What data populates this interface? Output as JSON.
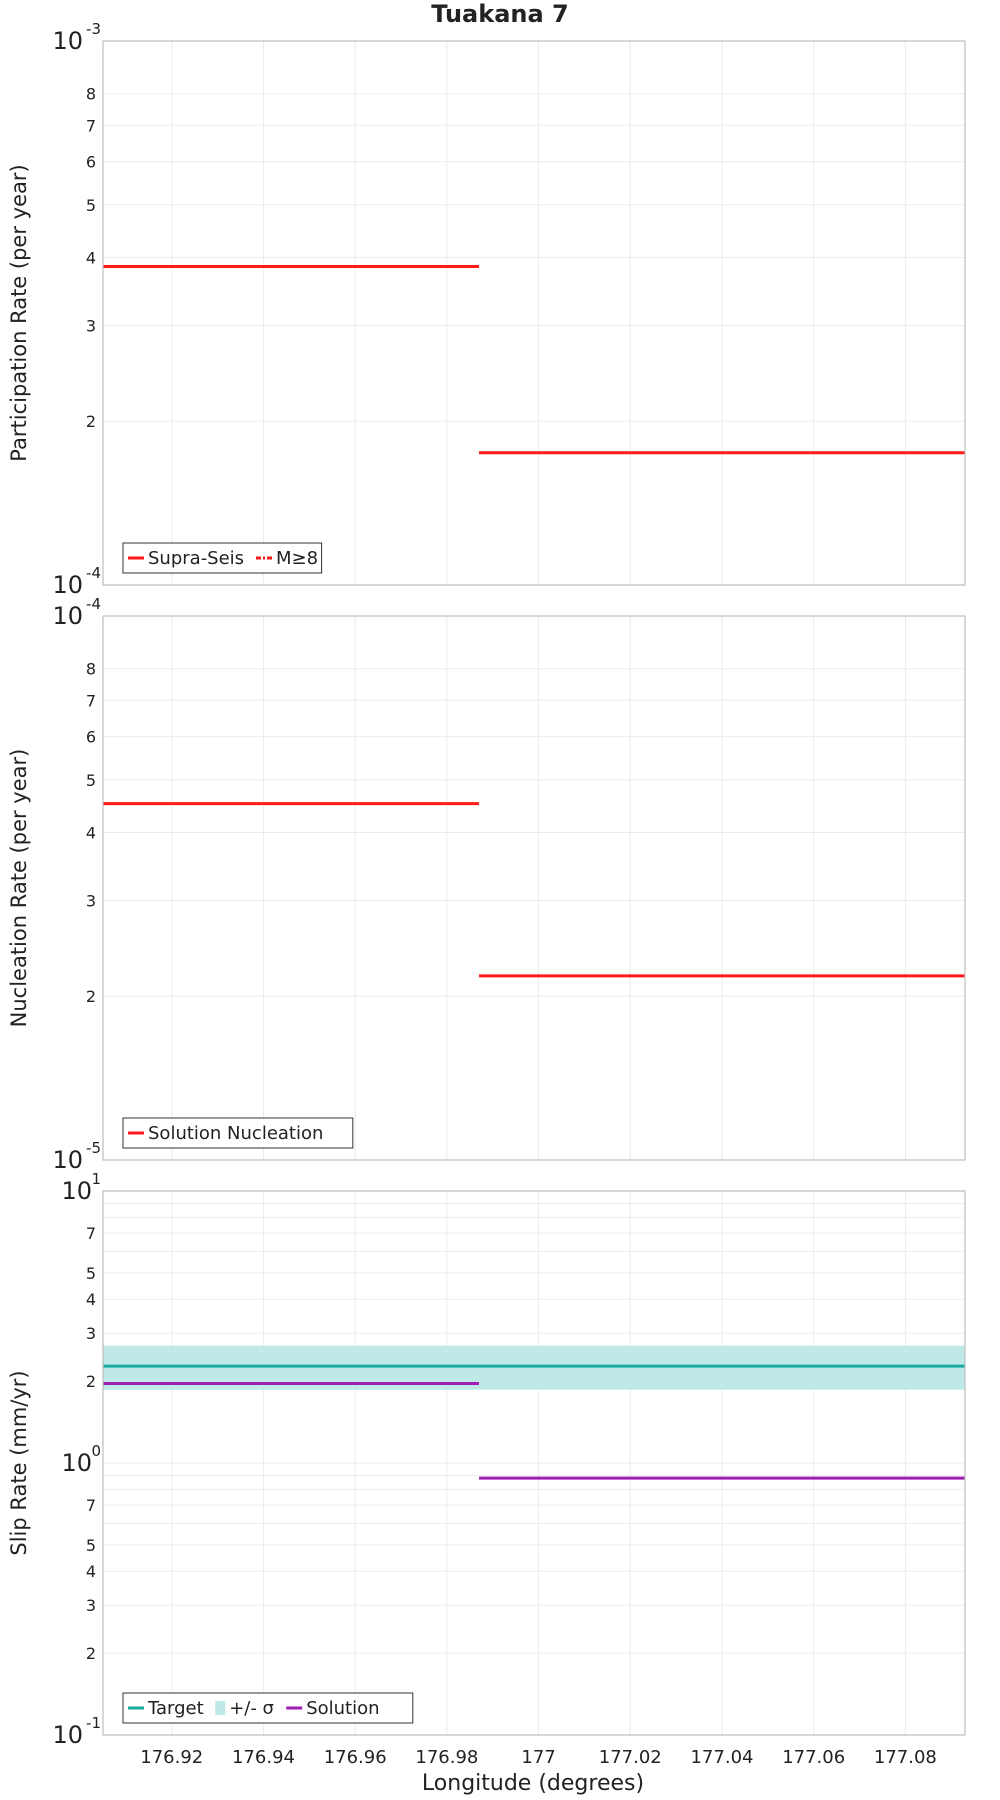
{
  "title": "Tuakana 7",
  "colors": {
    "red": "#ff1a1a",
    "target": "#1aaaa0",
    "band": "#bfe9e6",
    "solution": "#a01eb4",
    "grid": "#ebebeb",
    "frame": "#bdbdbd"
  },
  "chart_data": [
    {
      "type": "line",
      "panel": "participation",
      "ylabel": "Participation Rate (per year)",
      "yscale": "log",
      "ylim": [
        0.0001,
        0.001
      ],
      "xlim": [
        176.905,
        177.093
      ],
      "decade_labels": [
        {
          "value": 0.001,
          "base": "10",
          "exp": "-3"
        },
        {
          "value": 0.0001,
          "base": "10",
          "exp": "-4"
        }
      ],
      "minor_ticks": [
        {
          "value": 0.0008,
          "label": "8"
        },
        {
          "value": 0.0007,
          "label": "7"
        },
        {
          "value": 0.0006,
          "label": "6"
        },
        {
          "value": 0.0005,
          "label": "5"
        },
        {
          "value": 0.0004,
          "label": "4"
        },
        {
          "value": 0.0003,
          "label": "3"
        },
        {
          "value": 0.0002,
          "label": "2"
        }
      ],
      "series": [
        {
          "name": "Supra-Seis",
          "color": "#ff1a1a",
          "style": "solid",
          "segments": [
            {
              "x": [
                176.905,
                176.987
              ],
              "y": 0.000385
            },
            {
              "x": [
                176.987,
                177.093
              ],
              "y": 0.000175
            }
          ]
        },
        {
          "name": "M≥8",
          "color": "#ff1a1a",
          "style": "dashdot",
          "segments": []
        }
      ],
      "legend": [
        {
          "label": "Supra-Seis",
          "kind": "line",
          "color": "#ff1a1a",
          "style": "solid"
        },
        {
          "label": "M≥8",
          "kind": "line",
          "color": "#ff1a1a",
          "style": "dashdot"
        }
      ],
      "legend_position": "bottom-left"
    },
    {
      "type": "line",
      "panel": "nucleation",
      "ylabel": "Nucleation Rate (per year)",
      "yscale": "log",
      "ylim": [
        1e-05,
        0.0001
      ],
      "xlim": [
        176.905,
        177.093
      ],
      "decade_labels": [
        {
          "value": 0.0001,
          "base": "10",
          "exp": "-4"
        },
        {
          "value": 1e-05,
          "base": "10",
          "exp": "-5"
        }
      ],
      "minor_ticks": [
        {
          "value": 8e-05,
          "label": "8"
        },
        {
          "value": 7e-05,
          "label": "7"
        },
        {
          "value": 6e-05,
          "label": "6"
        },
        {
          "value": 5e-05,
          "label": "5"
        },
        {
          "value": 4e-05,
          "label": "4"
        },
        {
          "value": 3e-05,
          "label": "3"
        },
        {
          "value": 2e-05,
          "label": "2"
        }
      ],
      "series": [
        {
          "name": "Solution Nucleation",
          "color": "#ff1a1a",
          "style": "solid",
          "segments": [
            {
              "x": [
                176.905,
                176.987
              ],
              "y": 4.52e-05
            },
            {
              "x": [
                176.987,
                177.093
              ],
              "y": 2.18e-05
            }
          ]
        }
      ],
      "legend": [
        {
          "label": "Solution Nucleation",
          "kind": "line",
          "color": "#ff1a1a",
          "style": "solid"
        }
      ],
      "legend_position": "bottom-left"
    },
    {
      "type": "line",
      "panel": "slip",
      "ylabel": "Slip Rate (mm/yr)",
      "yscale": "log",
      "ylim": [
        0.1,
        10
      ],
      "xlim": [
        176.905,
        177.093
      ],
      "decade_labels": [
        {
          "value": 10,
          "base": "10",
          "exp": "1"
        },
        {
          "value": 1,
          "base": "10",
          "exp": "0"
        },
        {
          "value": 0.1,
          "base": "10",
          "exp": "-1"
        }
      ],
      "minor_ticks": [
        {
          "value": 7,
          "label": "7"
        },
        {
          "value": 5,
          "label": "5"
        },
        {
          "value": 4,
          "label": "4"
        },
        {
          "value": 3,
          "label": "3"
        },
        {
          "value": 2,
          "label": "2"
        },
        {
          "value": 0.7,
          "label": "7"
        },
        {
          "value": 0.5,
          "label": "5"
        },
        {
          "value": 0.4,
          "label": "4"
        },
        {
          "value": 0.3,
          "label": "3"
        },
        {
          "value": 0.2,
          "label": "2"
        }
      ],
      "minor_grid": [
        9,
        8,
        7,
        6,
        5,
        4,
        3,
        2,
        0.9,
        0.8,
        0.7,
        0.6,
        0.5,
        0.4,
        0.3,
        0.2
      ],
      "band": {
        "name": "+/- σ",
        "color": "#bfe9e6",
        "lower": 1.86,
        "upper": 2.7,
        "x": [
          176.905,
          177.093
        ]
      },
      "series": [
        {
          "name": "Target",
          "color": "#1aaaa0",
          "style": "solid",
          "segments": [
            {
              "x": [
                176.905,
                177.093
              ],
              "y": 2.27
            }
          ]
        },
        {
          "name": "Solution",
          "color": "#a01eb4",
          "style": "solid",
          "segments": [
            {
              "x": [
                176.905,
                176.987
              ],
              "y": 1.96
            },
            {
              "x": [
                176.987,
                177.093
              ],
              "y": 0.88
            }
          ]
        }
      ],
      "legend": [
        {
          "label": "Target",
          "kind": "line",
          "color": "#1aaaa0",
          "style": "solid"
        },
        {
          "label": "+/- σ",
          "kind": "patch",
          "color": "#bfe9e6"
        },
        {
          "label": "Solution",
          "kind": "line",
          "color": "#a01eb4",
          "style": "solid"
        }
      ],
      "legend_position": "bottom-left"
    }
  ],
  "x_axis": {
    "label": "Longitude (degrees)",
    "ticks": [
      {
        "value": 176.92,
        "label": "176.92"
      },
      {
        "value": 176.94,
        "label": "176.94"
      },
      {
        "value": 176.96,
        "label": "176.96"
      },
      {
        "value": 176.98,
        "label": "176.98"
      },
      {
        "value": 177.0,
        "label": "177"
      },
      {
        "value": 177.02,
        "label": "177.02"
      },
      {
        "value": 177.04,
        "label": "177.04"
      },
      {
        "value": 177.06,
        "label": "177.06"
      },
      {
        "value": 177.08,
        "label": "177.08"
      }
    ]
  }
}
